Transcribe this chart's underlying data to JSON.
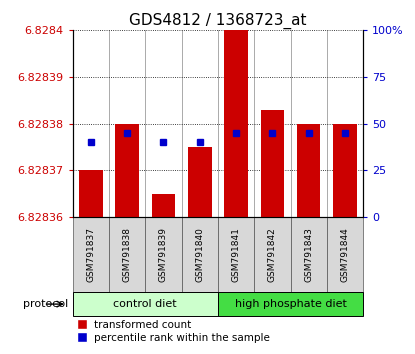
{
  "title": "GDS4812 / 1368723_at",
  "samples": [
    "GSM791837",
    "GSM791838",
    "GSM791839",
    "GSM791840",
    "GSM791841",
    "GSM791842",
    "GSM791843",
    "GSM791844"
  ],
  "red_values": [
    6.82837,
    6.82838,
    6.828365,
    6.828375,
    6.828405,
    6.828383,
    6.82838,
    6.82838
  ],
  "blue_values": [
    40,
    45,
    40,
    40,
    45,
    45,
    45,
    45
  ],
  "ylim_left": [
    6.82836,
    6.8284
  ],
  "ylim_right": [
    0,
    100
  ],
  "yticks_left": [
    6.82836,
    6.82837,
    6.82838,
    6.82839,
    6.8284
  ],
  "yticks_left_labels": [
    "6.82836",
    "6.82837",
    "6.82838",
    "6.82839",
    "6.8284"
  ],
  "yticks_right": [
    0,
    25,
    50,
    75,
    100
  ],
  "yticks_right_labels": [
    "0",
    "25",
    "50",
    "75",
    "100%"
  ],
  "group_labels": [
    "control diet",
    "high phosphate diet"
  ],
  "group_starts": [
    0,
    4
  ],
  "group_ends": [
    4,
    8
  ],
  "group_colors": [
    "#ccffcc",
    "#44dd44"
  ],
  "bar_color": "#cc0000",
  "blue_color": "#0000cc",
  "bar_base": 6.82836,
  "protocol_label": "protocol",
  "legend_red": "transformed count",
  "legend_blue": "percentile rank within the sample",
  "bg_color": "#ffffff",
  "tick_label_color_left": "#cc0000",
  "tick_label_color_right": "#0000cc",
  "title_fontsize": 11,
  "tick_fontsize": 8,
  "sample_fontsize": 6.5,
  "bar_width": 0.65
}
